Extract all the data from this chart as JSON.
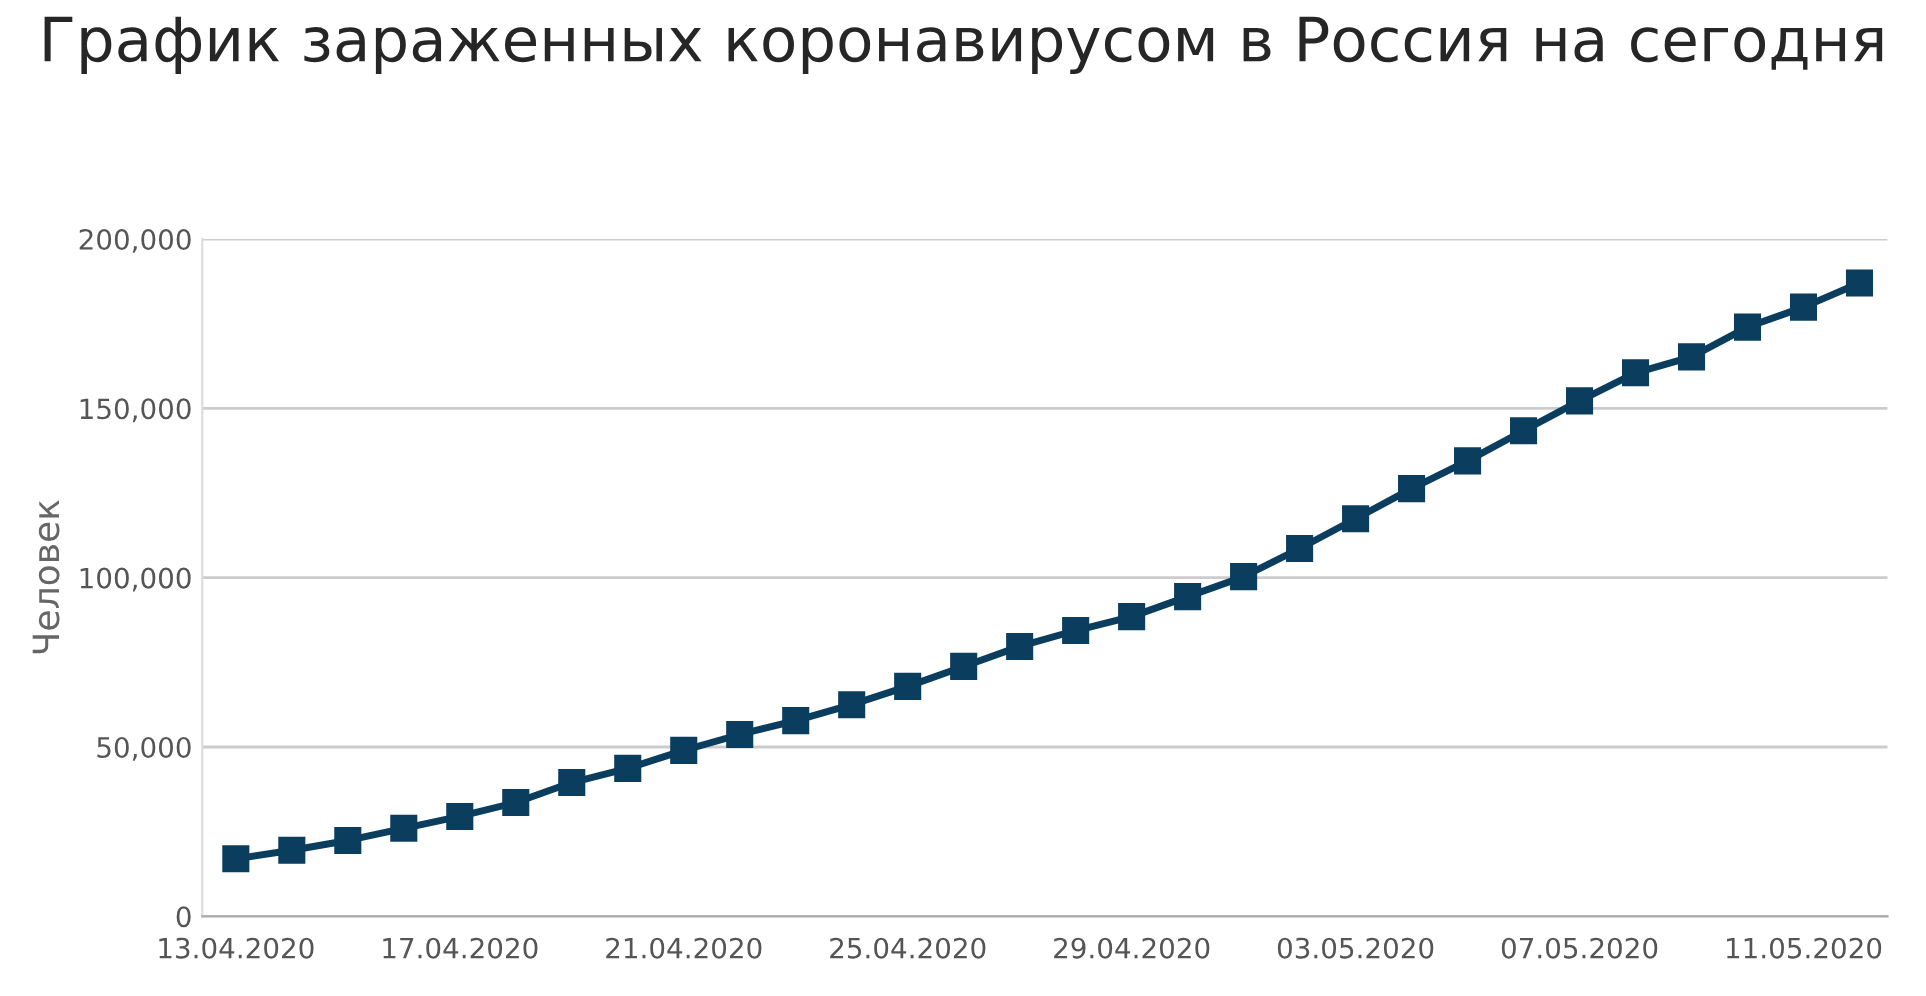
{
  "chart_data": {
    "type": "line",
    "title": "График зараженных коронавирусом в Россия на сегодня",
    "ylabel": "Человек",
    "categories": [
      "13.04.2020",
      null,
      null,
      null,
      "17.04.2020",
      null,
      null,
      null,
      "21.04.2020",
      null,
      null,
      null,
      "25.04.2020",
      null,
      null,
      null,
      "29.04.2020",
      null,
      null,
      null,
      "03.05.2020",
      null,
      null,
      null,
      "07.05.2020",
      null,
      null,
      null,
      "11.05.2020",
      null
    ],
    "series": [
      {
        "color": "#0b3d5e",
        "values": [
          17000,
          19500,
          22400,
          26000,
          29500,
          33600,
          39500,
          43700,
          49000,
          53700,
          57800,
          62500,
          67900,
          73800,
          79700,
          84400,
          88500,
          94400,
          100300,
          108600,
          117400,
          126300,
          134500,
          143400,
          152200,
          160500,
          165200,
          174000,
          179900,
          187000
        ]
      }
    ],
    "ylim": [
      0,
      200000
    ],
    "yticks": [
      {
        "value": 0,
        "label": "0"
      },
      {
        "value": 50000,
        "label": "50,000"
      },
      {
        "value": 100000,
        "label": "100,000"
      },
      {
        "value": 150000,
        "label": "150,000"
      },
      {
        "value": 200000,
        "label": "200,000"
      }
    ],
    "grid": "y",
    "marker": "square",
    "line_style": "solid",
    "legend": false
  }
}
